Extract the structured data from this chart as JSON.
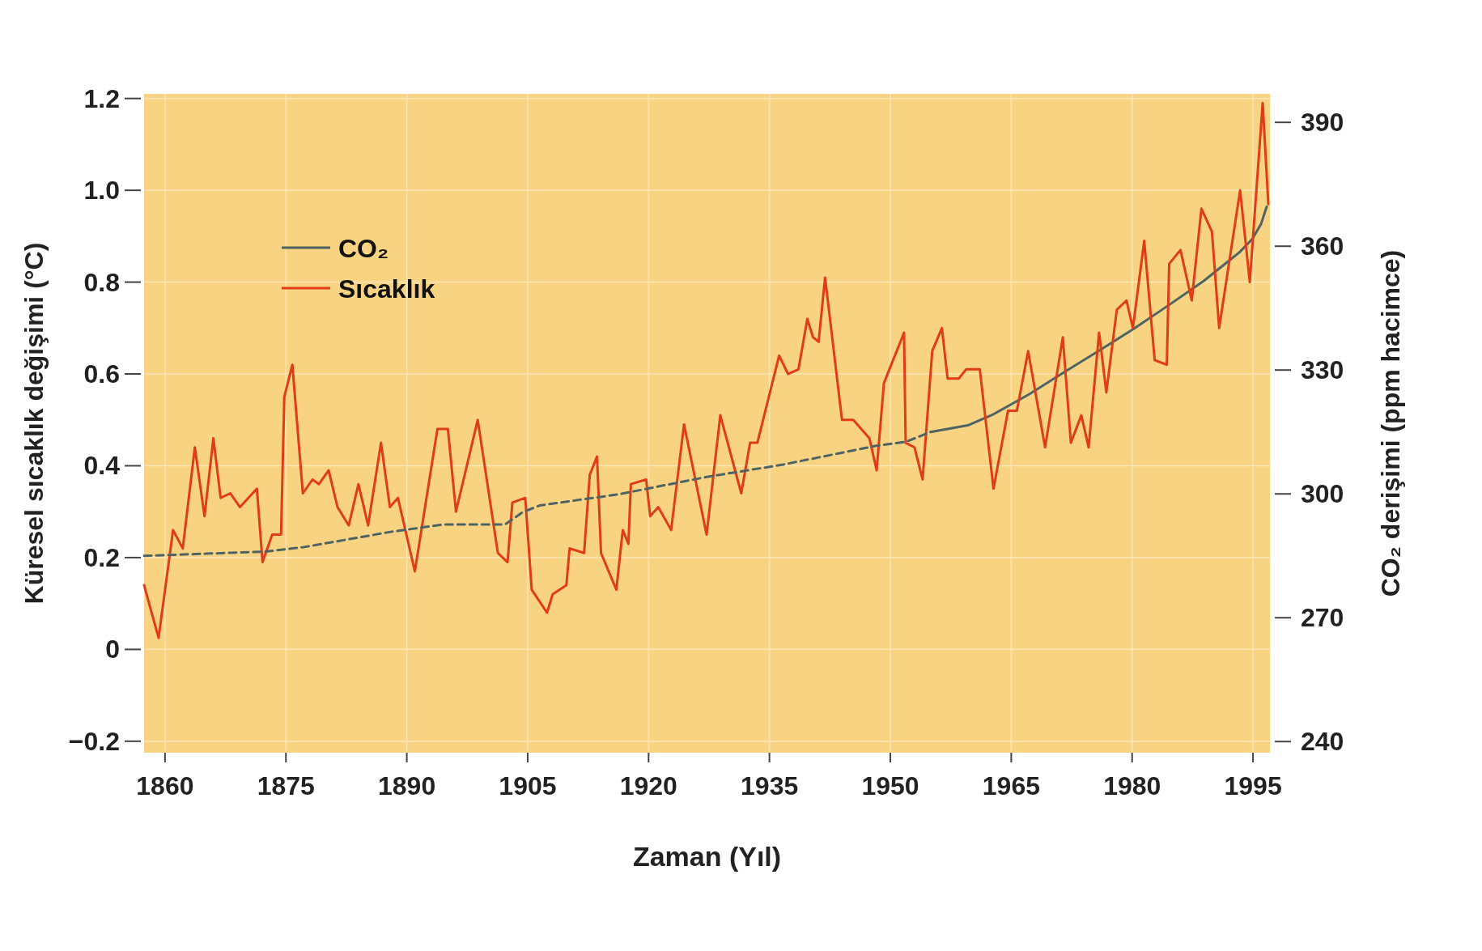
{
  "chart_data": {
    "type": "line",
    "xlabel": "Zaman (Yıl)",
    "ylabel": "Küresel sıcaklık değişimi (°C)",
    "y2label": "CO₂ derişimi (ppm hacimce)",
    "xlim": [
      1857.4,
      1997.1
    ],
    "xticks": [
      1860,
      1875,
      1890,
      1905,
      1920,
      1935,
      1950,
      1965,
      1980,
      1995
    ],
    "ylim": [
      -0.225,
      1.21
    ],
    "yticks": [
      {
        "value": -0.2,
        "label": "−0.2"
      },
      0,
      0.2,
      0.4,
      0.6,
      0.8,
      {
        "value": 1,
        "label": "1.0"
      },
      1.2
    ],
    "y2lim": [
      237.3,
      396.9
    ],
    "y2ticks": [
      240,
      270,
      300,
      330,
      360,
      390
    ],
    "grid": true,
    "legend": "top left",
    "series": [
      {
        "name": "CO₂",
        "color": "#4e6363",
        "axis": "y2",
        "line_style": "solid",
        "x": [
          1955,
          1959.6,
          1962.8,
          1967.2,
          1971.5,
          1975.9,
          1980.2,
          1984.6,
          1988.9,
          1993.3,
          1994.9,
          1996,
          1996.7
        ],
        "values": [
          315.0,
          316.6,
          319.3,
          324.1,
          329.4,
          334.7,
          340.0,
          345.8,
          351.6,
          358.5,
          361.7,
          365.4,
          369.6
        ]
      },
      {
        "name": "Sıcaklık",
        "color": "#e03c18",
        "axis": "y",
        "line_style": "solid",
        "x": [
          1857.4,
          1859.2,
          1861,
          1862.2,
          1863.7,
          1864.9,
          1866,
          1866.9,
          1868.1,
          1869.3,
          1871.4,
          1872.1,
          1873.3,
          1874.4,
          1874.8,
          1875.8,
          1877.1,
          1878.3,
          1879.1,
          1880.3,
          1881.4,
          1882.8,
          1884,
          1885.2,
          1886.8,
          1887.9,
          1888.9,
          1891,
          1893.8,
          1895.1,
          1896.1,
          1898.8,
          1901.3,
          1902.5,
          1903.1,
          1904.7,
          1905.5,
          1907.4,
          1908.1,
          1909.8,
          1910.2,
          1912,
          1912.7,
          1913.6,
          1914.1,
          1916,
          1916.8,
          1917.5,
          1917.8,
          1919.7,
          1920.2,
          1921.2,
          1922.8,
          1924.4,
          1927.2,
          1928.9,
          1931.5,
          1932.6,
          1933.5,
          1936.2,
          1937.3,
          1938.6,
          1939.7,
          1940.4,
          1941.1,
          1941.9,
          1944,
          1945.4,
          1947.4,
          1948.3,
          1949.2,
          1951.7,
          1951.9,
          1953,
          1954,
          1955.2,
          1956.4,
          1957.1,
          1958.5,
          1959.4,
          1961.1,
          1962.8,
          1964.6,
          1965.7,
          1967.1,
          1969.2,
          1971.4,
          1972.4,
          1973.7,
          1974.6,
          1975.9,
          1976.8,
          1978.1,
          1979.3,
          1980.1,
          1981.5,
          1982.8,
          1984.3,
          1984.6,
          1986,
          1987.4,
          1988.6,
          1989.9,
          1990.8,
          1993.4,
          1994.6,
          1996.2,
          1996.9
        ],
        "values": [
          0.14,
          0.025,
          0.26,
          0.22,
          0.44,
          0.29,
          0.46,
          0.33,
          0.34,
          0.31,
          0.35,
          0.19,
          0.25,
          0.25,
          0.55,
          0.62,
          0.34,
          0.37,
          0.36,
          0.39,
          0.31,
          0.27,
          0.36,
          0.27,
          0.45,
          0.31,
          0.33,
          0.17,
          0.48,
          0.48,
          0.3,
          0.5,
          0.21,
          0.19,
          0.32,
          0.33,
          0.13,
          0.08,
          0.12,
          0.14,
          0.22,
          0.21,
          0.38,
          0.42,
          0.21,
          0.13,
          0.26,
          0.23,
          0.36,
          0.37,
          0.29,
          0.31,
          0.26,
          0.49,
          0.25,
          0.51,
          0.34,
          0.45,
          0.45,
          0.64,
          0.6,
          0.61,
          0.72,
          0.68,
          0.67,
          0.81,
          0.5,
          0.5,
          0.46,
          0.39,
          0.58,
          0.69,
          0.45,
          0.44,
          0.37,
          0.65,
          0.7,
          0.59,
          0.59,
          0.61,
          0.61,
          0.35,
          0.52,
          0.52,
          0.65,
          0.44,
          0.68,
          0.45,
          0.51,
          0.44,
          0.69,
          0.56,
          0.74,
          0.76,
          0.7,
          0.89,
          0.63,
          0.62,
          0.84,
          0.87,
          0.76,
          0.96,
          0.91,
          0.7,
          1.0,
          0.8,
          1.19,
          0.97
        ]
      },
      {
        "color": "#4e6363",
        "axis": "y2",
        "line_style": "dashed",
        "x": [
          1857.4,
          1872.3,
          1877.2,
          1888.0,
          1894.6,
          1902.2,
          1904.4,
          1906.5,
          1916.3,
          1927.2,
          1936.7,
          1948.1,
          1951.9,
          1955
        ],
        "values": [
          285.0,
          286.0,
          287.1,
          290.8,
          292.6,
          292.6,
          295.6,
          297.2,
          299.9,
          304.1,
          307.1,
          311.6,
          312.6,
          315.0
        ]
      }
    ]
  }
}
